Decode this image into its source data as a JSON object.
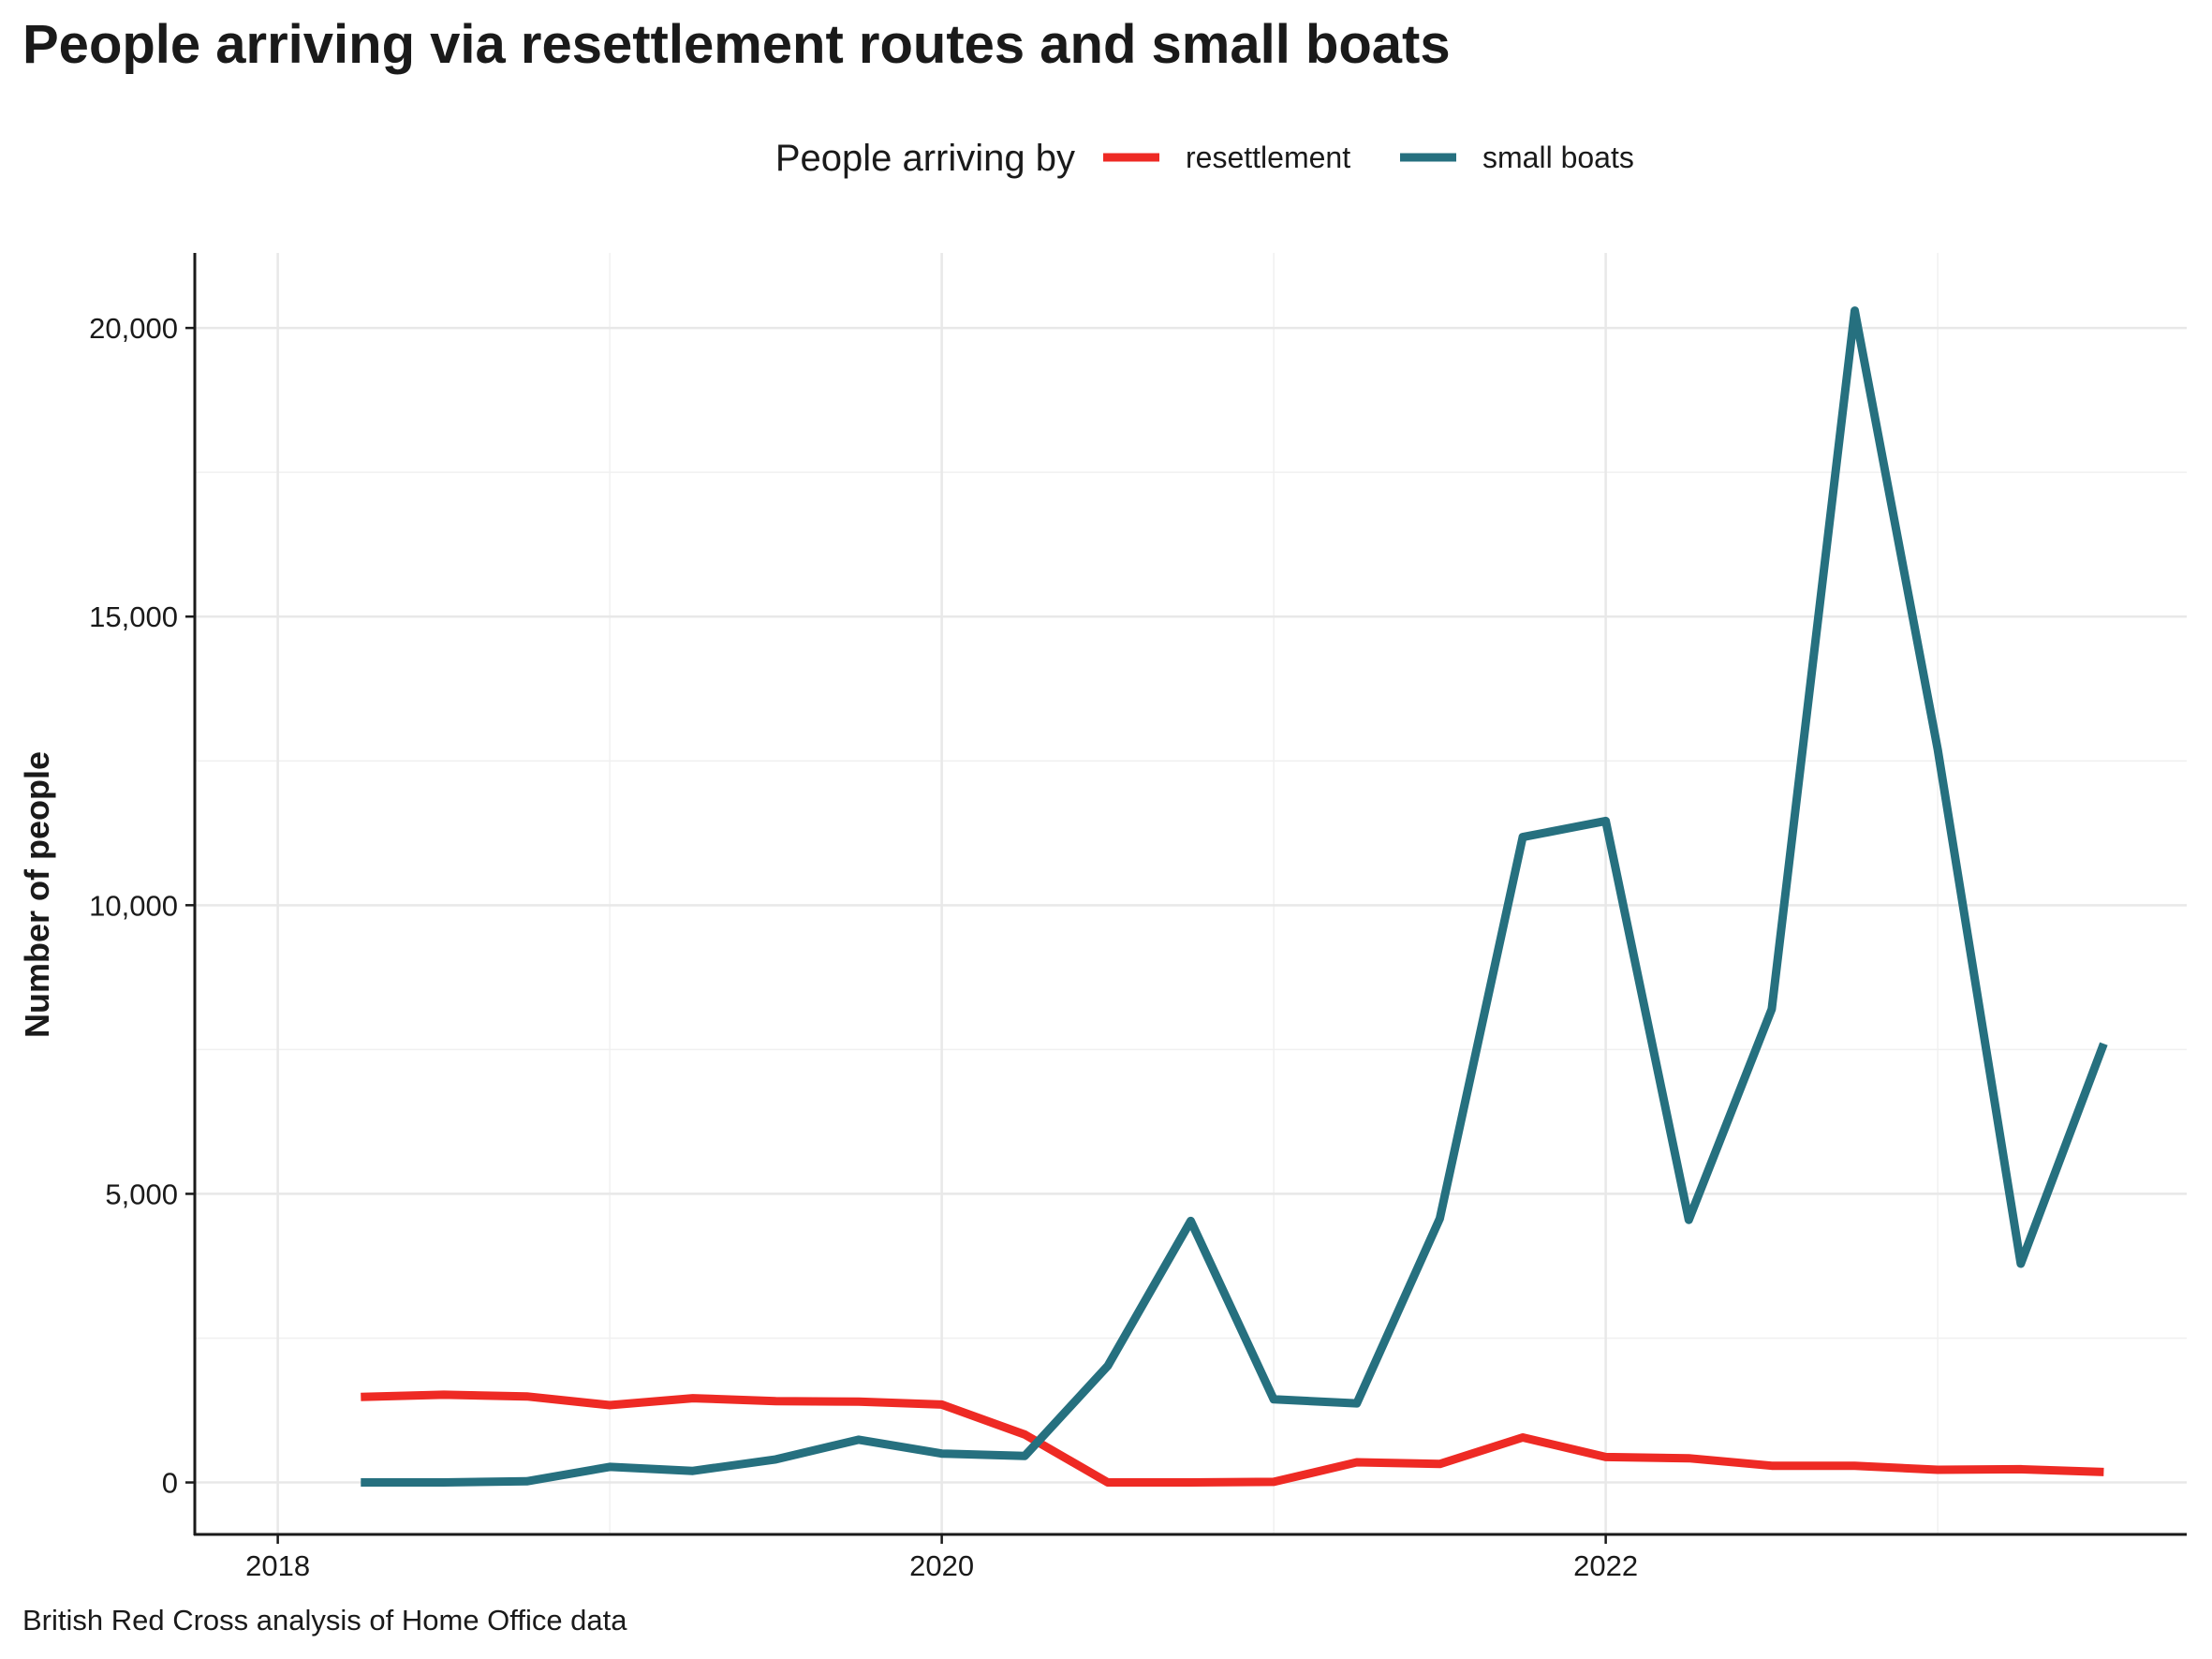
{
  "title": "People arriving via resettlement routes and small boats",
  "caption": "British Red Cross analysis of Home Office data",
  "chart_data": {
    "type": "line",
    "ylabel": "Number of people",
    "xlabel": "",
    "x_tick_labels": [
      "2018",
      "2020",
      "2022"
    ],
    "y_tick_labels": [
      "0",
      "5,000",
      "10,000",
      "15,000",
      "20,000"
    ],
    "x_ticks": [
      2018,
      2020,
      2022
    ],
    "y_ticks": [
      0,
      5000,
      10000,
      15000,
      20000
    ],
    "xlim": [
      2017.75,
      2023.75
    ],
    "ylim": [
      -900,
      21300
    ],
    "grid": "on",
    "legend": {
      "title": "People arriving by",
      "position": "top"
    },
    "x": [
      2018.25,
      2018.5,
      2018.75,
      2019.0,
      2019.25,
      2019.5,
      2019.75,
      2020.0,
      2020.25,
      2020.5,
      2020.75,
      2021.0,
      2021.25,
      2021.5,
      2021.75,
      2022.0,
      2022.25,
      2022.5,
      2022.75,
      2023.0,
      2023.25,
      2023.5
    ],
    "series": [
      {
        "name": "resettlement",
        "color": "#ee2a24",
        "values": [
          1480,
          1520,
          1490,
          1340,
          1460,
          1410,
          1400,
          1350,
          830,
          0,
          0,
          10,
          350,
          320,
          780,
          440,
          420,
          290,
          290,
          220,
          230,
          180
        ]
      },
      {
        "name": "small boats",
        "color": "#26707f",
        "values": [
          0,
          0,
          20,
          270,
          200,
          400,
          740,
          500,
          460,
          2020,
          4530,
          1440,
          1370,
          4570,
          11180,
          11460,
          4550,
          8200,
          20300,
          12700,
          3790,
          7600
        ]
      }
    ]
  }
}
